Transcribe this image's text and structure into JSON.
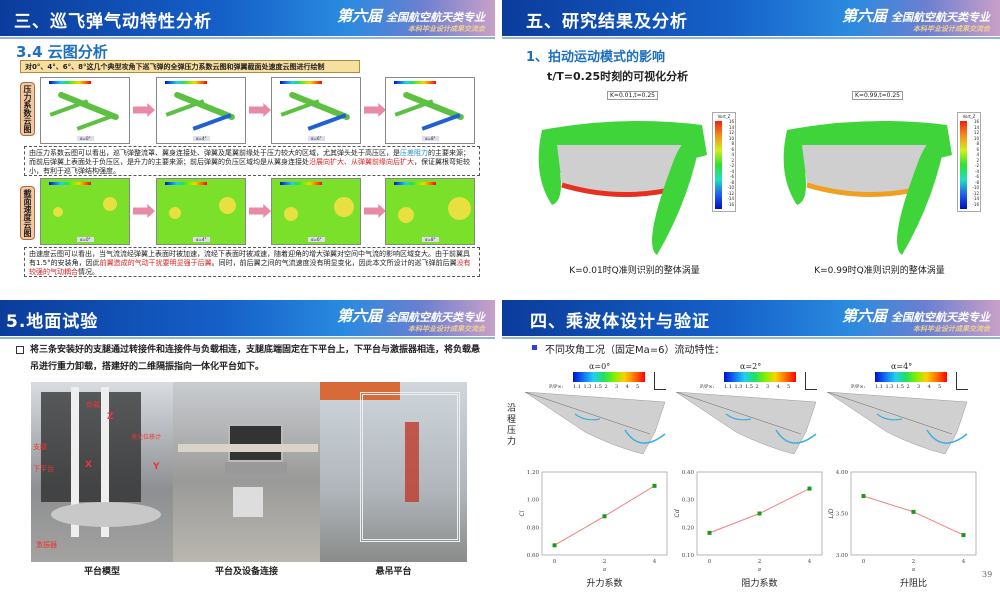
{
  "brand": {
    "main": "第六届",
    "line1": "全国航空航天类专业",
    "line2": "本科毕业设计成果交流会"
  },
  "slide1": {
    "title": "三、巡飞弹气动特性分析",
    "section": "3.4 云图分析",
    "intro": "对0°、4°、6°、8°这几个典型攻角下巡飞弹的全弹压力系数云图和弹翼截面处速度云图进行绘制",
    "row1_label": "压力系数云图",
    "row2_label": "截面速度云图",
    "angle_tags": [
      "α=0°",
      "α=4°",
      "α=6°",
      "α=8°"
    ],
    "text1": {
      "a": "由压力系数云图可以看出，巡飞弹整流罩、翼身连接处、弹翼及尾翼前缘处于压力较大的区域，尤其弹头处于高压区，是",
      "b": "压差阻力",
      "c": "的主要来源；而前后弹翼上表面处于负压区，是升力的主要来源；前后弹翼的负压区域均是从翼身连接处",
      "d": "沿展向扩大、从弹翼前缘向后扩大",
      "e": "，保证翼根弯矩较小，有利于巡飞弹结构强度。"
    },
    "text2": {
      "a": "由速度云图可以看出，当气流流经弹翼上表面时被加速，流经下表面时被减速，随着迎角的增大弹翼对空间中气流的影响区域变大。由于前翼具有1.5°的安装角，因此",
      "b": "前翼造成的气动干扰要明显强于后翼",
      "c": "。同时，前后翼之间的气流速度没有明显变化，因此本文所设计的巡飞弹前后翼",
      "d": "没有较强的气动耦合",
      "e": "情况。"
    }
  },
  "slide2": {
    "title": "五、研究结果及分析",
    "section": "1、拍动运动模式的影响",
    "subtitle": "t/T=0.25时刻的可视化分析",
    "panels": [
      {
        "tag": "K=0.01,t=0.25",
        "caption": "K=0.01时Q准则识别的整体涡量"
      },
      {
        "tag": "K=0.99,t=0.25",
        "caption": "K=0.99时Q准则识别的整体涡量"
      }
    ],
    "legend_title": "Vort_Z",
    "legend_ticks": [
      "16",
      "14",
      "12",
      "10",
      "8",
      "6",
      "4",
      "2",
      "-2",
      "-4",
      "-6",
      "-8",
      "-10",
      "-12",
      "-14",
      "-16"
    ]
  },
  "slide3": {
    "title": "5.地面试验",
    "bullet": "将三条安装好的支腿通过转接件和连接件与负载相连，支腿底端固定在下平台上，下平台与激振器相连，将负载悬吊进行重力卸载，搭建好的二维隔振指向一体化平台如下。",
    "photo_labels": {
      "load": "负载",
      "leg": "支腿",
      "lower": "下平台",
      "laser": "激光位移计",
      "x": "X",
      "y": "Y",
      "z": "Z",
      "exciter": "激振器"
    },
    "captions": [
      "平台模型",
      "平台及设备连接",
      "悬吊平台"
    ]
  },
  "slide4": {
    "title": "四、乘波体设计与验证",
    "bullet": "不同攻角工况（固定Ma=6）流动特性：",
    "side_label": "沿程压力",
    "alphas": [
      "α=0°",
      "α=2°",
      "α=4°"
    ],
    "scale_prefix": "P/P∞:",
    "scale_ticks": [
      "1.1",
      "1.3",
      "1.5",
      "2",
      "3",
      "4",
      "5"
    ],
    "page_number": "39"
  },
  "chart_data": [
    {
      "type": "line",
      "xlabel": "α",
      "ylabel": "Cl",
      "caption": "升力系数",
      "x": [
        0,
        2,
        4
      ],
      "y": [
        0.67,
        0.88,
        1.1
      ],
      "xticks": [
        "0",
        "2",
        "4"
      ],
      "yticks": [
        "0.60",
        "0.80",
        "1.00",
        "1.20"
      ],
      "ylim": [
        0.6,
        1.2
      ],
      "xlim": [
        -0.5,
        4.5
      ],
      "grid": false,
      "line_color": "#f08080",
      "marker_color": "#1a9a1a"
    },
    {
      "type": "line",
      "xlabel": "α",
      "ylabel": "Cd",
      "caption": "阻力系数",
      "x": [
        0,
        2,
        4
      ],
      "y": [
        0.18,
        0.25,
        0.34
      ],
      "xticks": [
        "0",
        "2",
        "4"
      ],
      "yticks": [
        "0.10",
        "0.20",
        "0.30",
        "0.40"
      ],
      "ylim": [
        0.1,
        0.4
      ],
      "xlim": [
        -0.5,
        4.5
      ],
      "grid": false,
      "line_color": "#f08080",
      "marker_color": "#1a9a1a"
    },
    {
      "type": "line",
      "xlabel": "α",
      "ylabel": "L/D",
      "caption": "升阻比",
      "x": [
        0,
        2,
        4
      ],
      "y": [
        3.71,
        3.52,
        3.24
      ],
      "xticks": [
        "0",
        "2",
        "4"
      ],
      "yticks": [
        "3.00",
        "3.50",
        "4.00"
      ],
      "ylim": [
        3.0,
        4.0
      ],
      "xlim": [
        -0.5,
        4.5
      ],
      "grid": false,
      "line_color": "#f08080",
      "marker_color": "#1a9a1a"
    }
  ]
}
